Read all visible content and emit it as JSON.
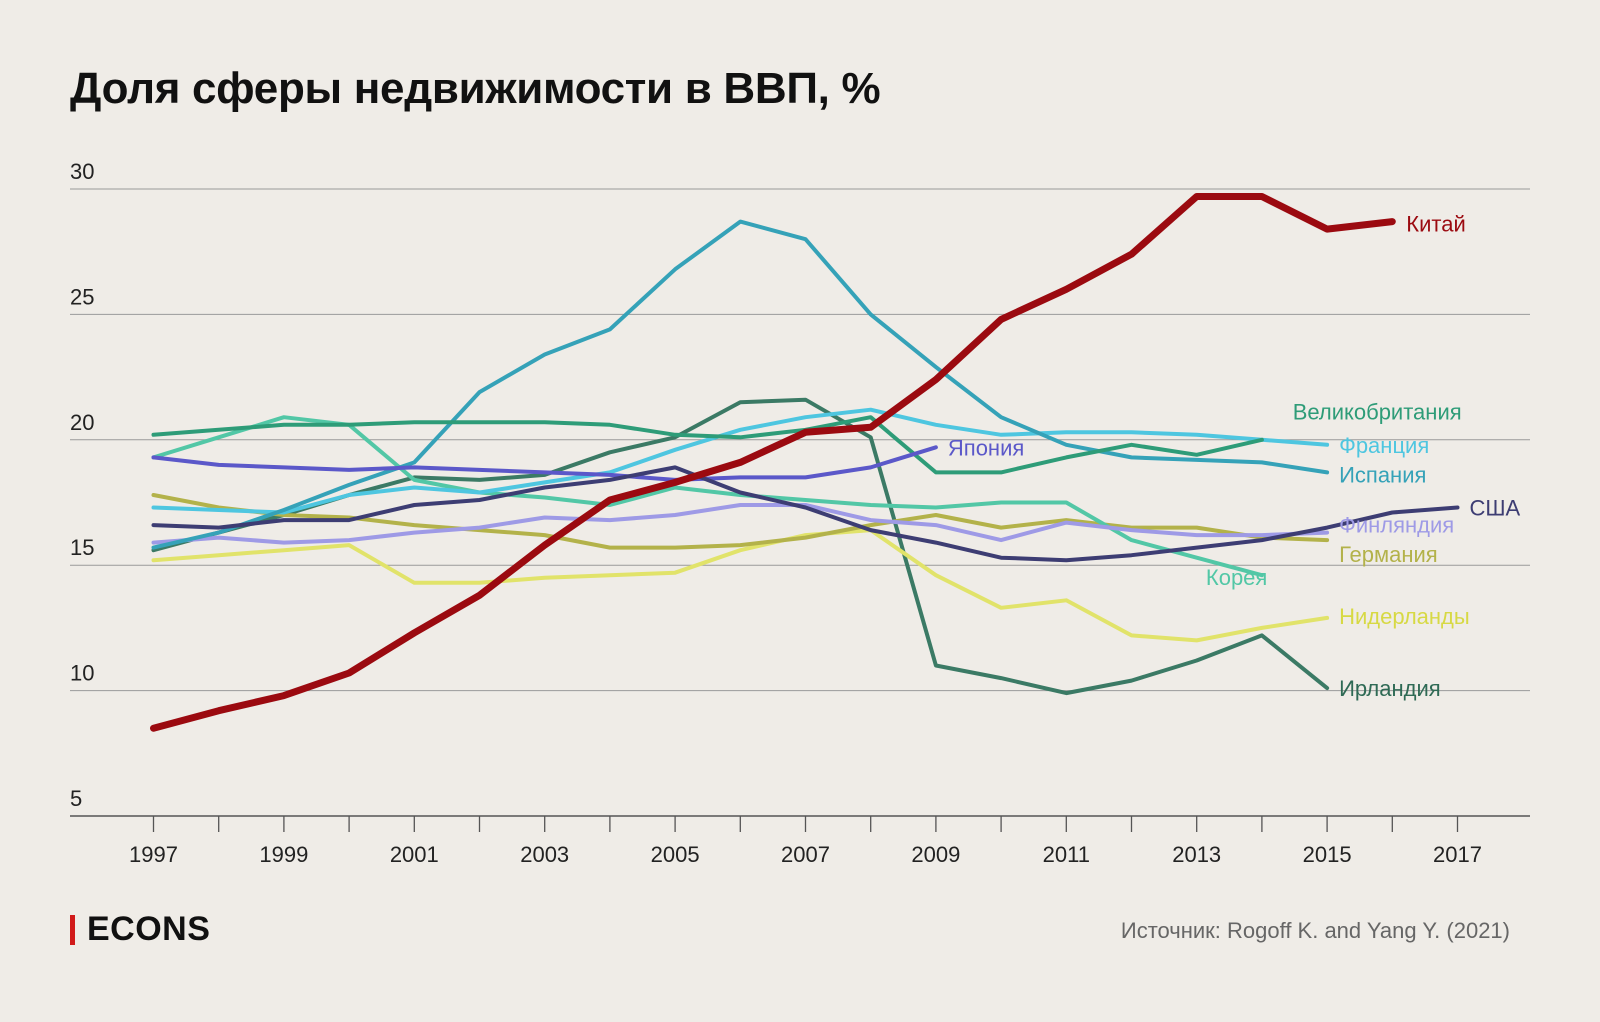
{
  "header": {
    "title": "Доля сферы недвижимости в ВВП, %"
  },
  "footer": {
    "logo": "ECONS",
    "source": "Источник: Rogoff K. and Yang Y. (2021)"
  },
  "colors": {
    "background": "#efece7",
    "gridline": "#9a9a9a",
    "text": "#111111",
    "logo_accent": "#d11a1a"
  },
  "chart_data": {
    "type": "line",
    "title": "Доля сферы недвижимости в ВВП, %",
    "xlabel": "",
    "ylabel": "",
    "xlim": [
      1996,
      2019
    ],
    "ylim": [
      5,
      30
    ],
    "x_ticks": [
      1997,
      1998,
      1999,
      2000,
      2001,
      2002,
      2003,
      2004,
      2005,
      2006,
      2007,
      2008,
      2009,
      2010,
      2011,
      2012,
      2013,
      2014,
      2015,
      2016,
      2017
    ],
    "x_tick_labels": [
      "1997",
      "1999",
      "2001",
      "2003",
      "2005",
      "2007",
      "2009",
      "2011",
      "2013",
      "2015",
      "2017"
    ],
    "y_ticks": [
      5,
      10,
      15,
      20,
      25,
      30
    ],
    "y_tick_labels": [
      "5",
      "10",
      "15",
      "20",
      "25",
      "30"
    ],
    "grid": "horizontal",
    "legend": "direct labels at line ends",
    "series": [
      {
        "name": "Ирландия",
        "color": "#3b7a65",
        "width": 4,
        "x": [
          1997,
          1998,
          1999,
          2000,
          2001,
          2002,
          2003,
          2004,
          2005,
          2006,
          2007,
          2008,
          2009,
          2010,
          2011,
          2012,
          2013,
          2014,
          2015
        ],
        "values": [
          15.6,
          16.3,
          17.0,
          17.8,
          18.5,
          18.4,
          18.6,
          19.5,
          20.1,
          21.5,
          21.6,
          20.1,
          11.0,
          10.5,
          9.9,
          10.4,
          11.2,
          12.2,
          10.1
        ]
      },
      {
        "name": "Нидерланды",
        "color": "#e1e36a",
        "width": 4,
        "x": [
          1997,
          1998,
          1999,
          2000,
          2001,
          2002,
          2003,
          2004,
          2005,
          2006,
          2007,
          2008,
          2009,
          2010,
          2011,
          2012,
          2013,
          2014,
          2015
        ],
        "values": [
          15.2,
          15.4,
          15.6,
          15.8,
          14.3,
          14.3,
          14.5,
          14.6,
          14.7,
          15.6,
          16.2,
          16.4,
          14.6,
          13.3,
          13.6,
          12.2,
          12.0,
          12.5,
          12.9
        ]
      },
      {
        "name": "Германия",
        "color": "#b3b24a",
        "width": 4,
        "x": [
          1997,
          1998,
          1999,
          2000,
          2001,
          2002,
          2003,
          2004,
          2005,
          2006,
          2007,
          2008,
          2009,
          2010,
          2011,
          2012,
          2013,
          2014,
          2015
        ],
        "values": [
          17.8,
          17.3,
          17.0,
          16.9,
          16.6,
          16.4,
          16.2,
          15.7,
          15.7,
          15.8,
          16.1,
          16.6,
          17.0,
          16.5,
          16.8,
          16.5,
          16.5,
          16.1,
          16.0
        ]
      },
      {
        "name": "Корея",
        "color": "#52c7a6",
        "width": 4,
        "x": [
          1997,
          1998,
          1999,
          2000,
          2001,
          2002,
          2003,
          2004,
          2005,
          2006,
          2007,
          2008,
          2009,
          2010,
          2011,
          2012,
          2013,
          2014
        ],
        "values": [
          19.3,
          20.1,
          20.9,
          20.6,
          18.4,
          17.9,
          17.7,
          17.4,
          18.1,
          17.8,
          17.6,
          17.4,
          17.3,
          17.5,
          17.5,
          16.0,
          15.3,
          14.6
        ]
      },
      {
        "name": "Финляндия",
        "color": "#9e9ae6",
        "width": 4,
        "x": [
          1997,
          1998,
          1999,
          2000,
          2001,
          2002,
          2003,
          2004,
          2005,
          2006,
          2007,
          2008,
          2009,
          2010,
          2011,
          2012,
          2013,
          2014,
          2015
        ],
        "values": [
          15.9,
          16.1,
          15.9,
          16.0,
          16.3,
          16.5,
          16.9,
          16.8,
          17.0,
          17.4,
          17.4,
          16.8,
          16.6,
          16.0,
          16.7,
          16.4,
          16.2,
          16.2,
          16.3
        ]
      },
      {
        "name": "Франция",
        "color": "#4ec6e0",
        "width": 4,
        "x": [
          1997,
          1998,
          1999,
          2000,
          2001,
          2002,
          2003,
          2004,
          2005,
          2006,
          2007,
          2008,
          2009,
          2010,
          2011,
          2012,
          2013,
          2014,
          2015
        ],
        "values": [
          17.3,
          17.2,
          17.1,
          17.8,
          18.1,
          17.9,
          18.3,
          18.7,
          19.6,
          20.4,
          20.9,
          21.2,
          20.6,
          20.2,
          20.3,
          20.3,
          20.2,
          20.0,
          19.8
        ]
      },
      {
        "name": "Испания",
        "color": "#35a2b8",
        "width": 4,
        "x": [
          1997,
          1998,
          1999,
          2000,
          2001,
          2002,
          2003,
          2004,
          2005,
          2006,
          2007,
          2008,
          2009,
          2010,
          2011,
          2012,
          2013,
          2014,
          2015
        ],
        "values": [
          15.7,
          16.3,
          17.2,
          18.2,
          19.1,
          21.9,
          23.4,
          24.4,
          26.8,
          28.7,
          28.0,
          25.0,
          22.9,
          20.9,
          19.8,
          19.3,
          19.2,
          19.1,
          18.7
        ]
      },
      {
        "name": "Великобритания",
        "color": "#2e9c78",
        "width": 4,
        "x": [
          1997,
          1998,
          1999,
          2000,
          2001,
          2002,
          2003,
          2004,
          2005,
          2006,
          2007,
          2008,
          2009,
          2010,
          2011,
          2012,
          2013,
          2014
        ],
        "values": [
          20.2,
          20.4,
          20.6,
          20.6,
          20.7,
          20.7,
          20.7,
          20.6,
          20.2,
          20.1,
          20.4,
          20.9,
          18.7,
          18.7,
          19.3,
          19.8,
          19.4,
          20.0
        ]
      },
      {
        "name": "Япония",
        "color": "#5b58c9",
        "width": 4,
        "x": [
          1997,
          1998,
          1999,
          2000,
          2001,
          2002,
          2003,
          2004,
          2005,
          2006,
          2007,
          2008,
          2009
        ],
        "values": [
          19.3,
          19.0,
          18.9,
          18.8,
          18.9,
          18.8,
          18.7,
          18.6,
          18.4,
          18.5,
          18.5,
          18.9,
          19.7
        ]
      },
      {
        "name": "США",
        "color": "#3d3d73",
        "width": 4,
        "x": [
          1997,
          1998,
          1999,
          2000,
          2001,
          2002,
          2003,
          2004,
          2005,
          2006,
          2007,
          2008,
          2009,
          2010,
          2011,
          2012,
          2013,
          2014,
          2015,
          2016,
          2017
        ],
        "values": [
          16.6,
          16.5,
          16.8,
          16.8,
          17.4,
          17.6,
          18.1,
          18.4,
          18.9,
          17.9,
          17.3,
          16.4,
          15.9,
          15.3,
          15.2,
          15.4,
          15.7,
          16.0,
          16.5,
          17.1,
          17.3
        ]
      },
      {
        "name": "Китай",
        "color": "#9b0a10",
        "width": 7,
        "x": [
          1997,
          1998,
          1999,
          2000,
          2001,
          2002,
          2003,
          2004,
          2005,
          2006,
          2007,
          2008,
          2009,
          2010,
          2011,
          2012,
          2013,
          2014,
          2015,
          2016
        ],
        "values": [
          8.5,
          9.2,
          9.8,
          10.7,
          12.3,
          13.8,
          15.8,
          17.6,
          18.3,
          19.1,
          20.3,
          20.5,
          22.4,
          24.8,
          26.0,
          27.4,
          29.7,
          29.7,
          28.4,
          28.7
        ]
      }
    ],
    "labels": [
      {
        "series": "Китай",
        "text": "Китай",
        "color": "#9b0a10"
      },
      {
        "series": "Великобритания",
        "text": "Великобритания",
        "color": "#2e9c78"
      },
      {
        "series": "Япония",
        "text": "Япония",
        "color": "#5b58c9"
      },
      {
        "series": "Франция",
        "text": "Франция",
        "color": "#4ec6e0"
      },
      {
        "series": "Испания",
        "text": "Испания",
        "color": "#35a2b8"
      },
      {
        "series": "США",
        "text": "США",
        "color": "#3d3d73"
      },
      {
        "series": "Финляндия",
        "text": "Финляндия",
        "color": "#9e9ae6"
      },
      {
        "series": "Германия",
        "text": "Германия",
        "color": "#b3b24a"
      },
      {
        "series": "Корея",
        "text": "Корея",
        "color": "#52c7a6"
      },
      {
        "series": "Нидерланды",
        "text": "Нидерланды",
        "color": "#d7d944"
      },
      {
        "series": "Ирландия",
        "text": "Ирландия",
        "color": "#2f6a55"
      }
    ]
  }
}
